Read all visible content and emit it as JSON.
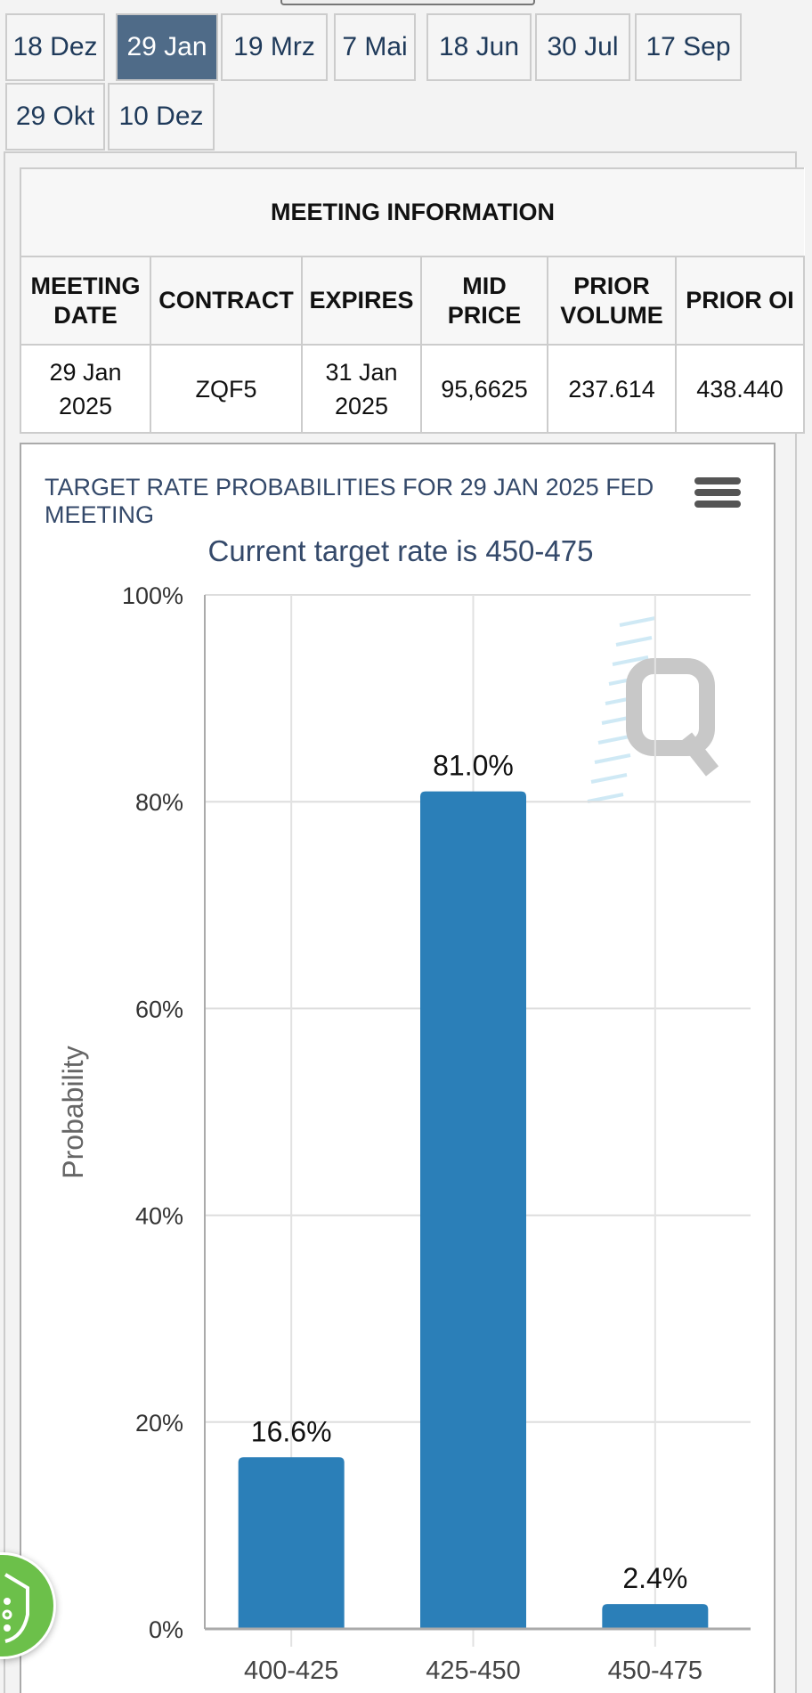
{
  "tabs": [
    {
      "label": "18 Dez",
      "active": false
    },
    {
      "label": "29 Jan",
      "active": true
    },
    {
      "label": "19 Mrz",
      "active": false
    },
    {
      "label": "7 Mai",
      "active": false
    },
    {
      "label": "18 Jun",
      "active": false
    },
    {
      "label": "30 Jul",
      "active": false
    },
    {
      "label": "17 Sep",
      "active": false
    },
    {
      "label": "29 Okt",
      "active": false
    },
    {
      "label": "10 Dez",
      "active": false
    }
  ],
  "meeting_info": {
    "title": "MEETING INFORMATION",
    "headers": [
      [
        "MEETING",
        "DATE"
      ],
      [
        "CONTRACT"
      ],
      [
        "EXPIRES"
      ],
      [
        "MID",
        "PRICE"
      ],
      [
        "PRIOR",
        "VOLUME"
      ],
      [
        "PRIOR OI"
      ]
    ],
    "row": [
      [
        "29 Jan",
        "2025"
      ],
      [
        "ZQF5"
      ],
      [
        "31 Jan",
        "2025"
      ],
      [
        "95,6625"
      ],
      [
        "237.614"
      ],
      [
        "438.440"
      ]
    ]
  },
  "chart_data": {
    "type": "bar",
    "title": "TARGET RATE PROBABILITIES FOR 29 JAN 2025 FED MEETING",
    "subtitle": "Current target rate is 450-475",
    "xlabel": "",
    "ylabel": "Probability",
    "categories": [
      "400-425",
      "425-450",
      "450-475"
    ],
    "values": [
      16.6,
      81.0,
      2.4
    ],
    "data_labels": [
      "16.6%",
      "81.0%",
      "2.4%"
    ],
    "ylim": [
      0,
      100
    ],
    "yticks": [
      "0%",
      "20%",
      "40%",
      "60%",
      "80%",
      "100%"
    ],
    "ytick_values": [
      0,
      20,
      40,
      60,
      80,
      100
    ],
    "grid": true,
    "bar_color": "#2b7fb8"
  },
  "icons": {
    "menu": "hamburger-menu-icon",
    "shield": "shield-icon",
    "watermark": "q-logo-watermark"
  }
}
